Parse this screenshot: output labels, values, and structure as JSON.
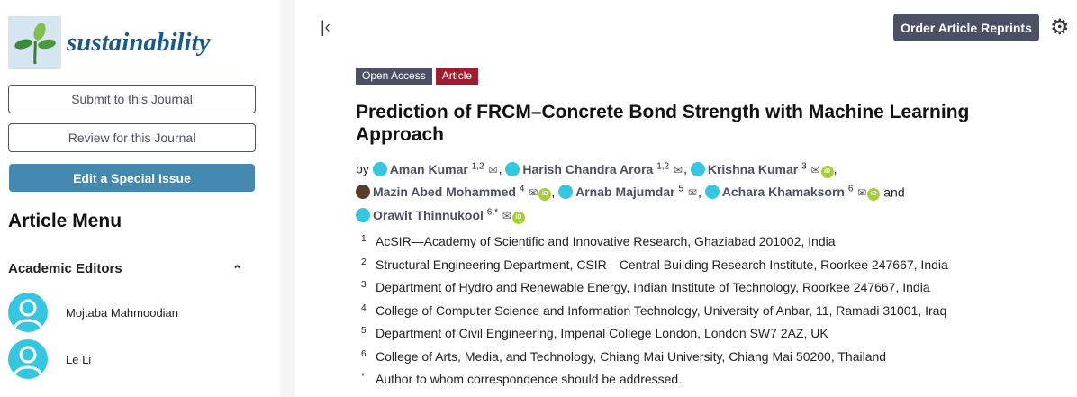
{
  "journal": {
    "name": "sustainability"
  },
  "sidebar": {
    "submit_label": "Submit to this Journal",
    "review_label": "Review for this Journal",
    "special_issue_label": "Edit a Special Issue",
    "menu_title": "Article Menu",
    "editors_title": "Academic Editors",
    "editors": [
      "Mojtaba Mahmoodian",
      "Le Li"
    ]
  },
  "header": {
    "reprints_label": "Order Article Reprints"
  },
  "article": {
    "badges": [
      {
        "label": "Open Access",
        "color": "#4b5064"
      },
      {
        "label": "Article",
        "color": "#a01d2f"
      }
    ],
    "title": "Prediction of FRCM–Concrete Bond Strength with Machine Learning Approach",
    "by": "by",
    "and": "and",
    "authors": [
      {
        "name": "Aman Kumar",
        "sup": "1,2",
        "orcid": false,
        "photo": false
      },
      {
        "name": "Harish Chandra Arora",
        "sup": "1,2",
        "orcid": false,
        "photo": false
      },
      {
        "name": "Krishna Kumar",
        "sup": "3",
        "orcid": true,
        "photo": false
      },
      {
        "name": "Mazin Abed Mohammed",
        "sup": "4",
        "orcid": true,
        "photo": true
      },
      {
        "name": "Arnab Majumdar",
        "sup": "5",
        "orcid": false,
        "photo": false
      },
      {
        "name": "Achara Khamaksorn",
        "sup": "6",
        "orcid": true,
        "photo": false
      },
      {
        "name": "Orawit Thinnukool",
        "sup": "6,*",
        "orcid": true,
        "photo": false
      }
    ],
    "affiliations": [
      {
        "mark": "1",
        "text": "AcSIR—Academy of Scientific and Innovative Research, Ghaziabad 201002, India"
      },
      {
        "mark": "2",
        "text": "Structural Engineering Department, CSIR—Central Building Research Institute, Roorkee 247667, India"
      },
      {
        "mark": "3",
        "text": "Department of Hydro and Renewable Energy, Indian Institute of Technology, Roorkee 247667, India"
      },
      {
        "mark": "4",
        "text": "College of Computer Science and Information Technology, University of Anbar, 11, Ramadi 31001, Iraq"
      },
      {
        "mark": "5",
        "text": "Department of Civil Engineering, Imperial College London, London SW7 2AZ, UK"
      },
      {
        "mark": "6",
        "text": "College of Arts, Media, and Technology, Chiang Mai University, Chiang Mai 50200, Thailand"
      },
      {
        "mark": "*",
        "text": "Author to whom correspondence should be addressed."
      }
    ]
  }
}
